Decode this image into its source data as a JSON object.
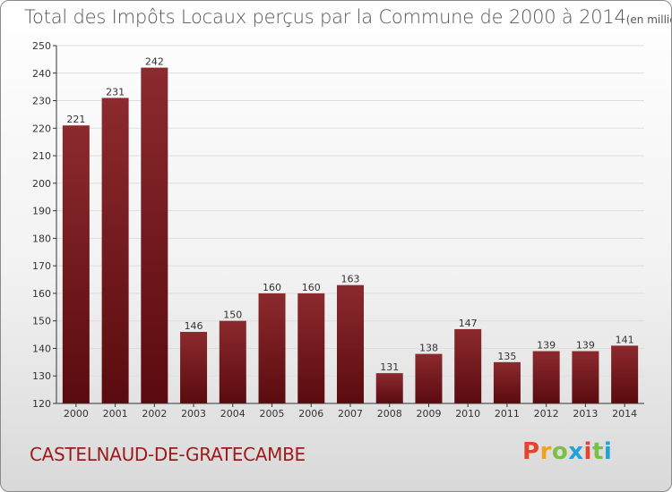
{
  "title": "Total des Impôts Locaux perçus par la Commune de 2000 à 2014",
  "title_unit": "(en milliers d'€)",
  "commune": "CASTELNAUD-DE-GRATECAMBE",
  "logo": {
    "text": "Proxiti",
    "colors": [
      "#e8422c",
      "#f3a21b",
      "#7ac143",
      "#1fa3db",
      "#e8422c",
      "#7ac143",
      "#1fa3db"
    ]
  },
  "colors": {
    "bar_top": "#8c2a2e",
    "bar_bottom": "#5a0b0f",
    "grid": "#dddddd",
    "axis": "#333333",
    "title": "#555555",
    "commune": "#9b1b1b"
  },
  "chart_data": {
    "type": "bar",
    "categories": [
      "2000",
      "2001",
      "2002",
      "2003",
      "2004",
      "2005",
      "2006",
      "2007",
      "2008",
      "2009",
      "2010",
      "2011",
      "2012",
      "2013",
      "2014"
    ],
    "values": [
      221,
      231,
      242,
      146,
      150,
      160,
      160,
      163,
      131,
      138,
      147,
      135,
      139,
      139,
      141
    ],
    "ylim": [
      120,
      250
    ],
    "yticks": [
      120,
      130,
      140,
      150,
      160,
      170,
      180,
      190,
      200,
      210,
      220,
      230,
      240,
      250
    ],
    "grid": true,
    "xlabel": "",
    "ylabel": ""
  }
}
